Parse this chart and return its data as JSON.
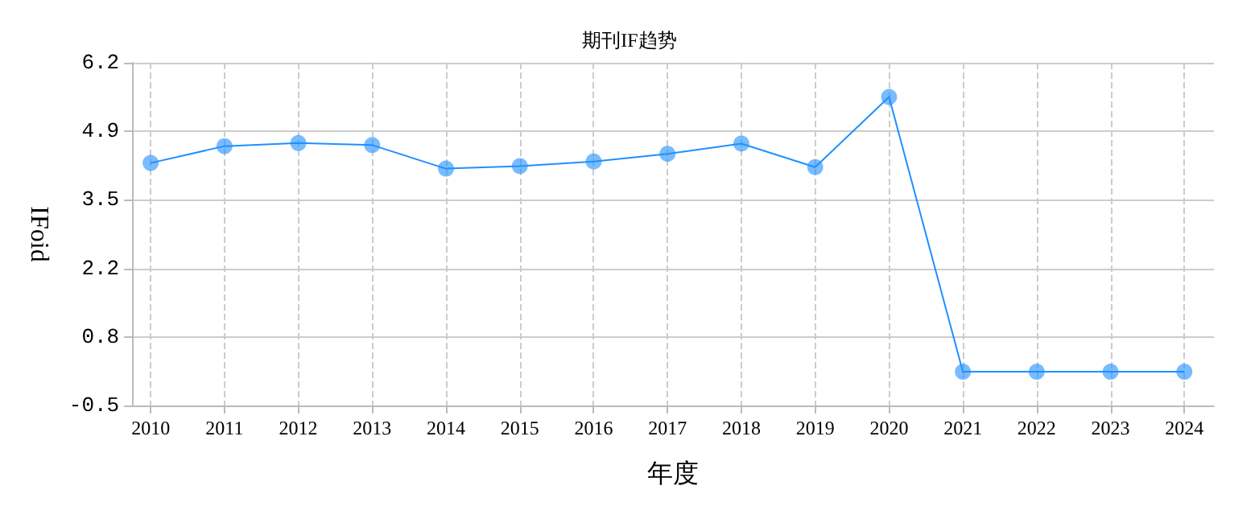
{
  "chart_data": {
    "type": "line",
    "title": "期刊IF趋势",
    "xlabel": "年度",
    "ylabel": "IFoid",
    "x": [
      2010,
      2011,
      2012,
      2013,
      2014,
      2015,
      2016,
      2017,
      2018,
      2019,
      2020,
      2021,
      2022,
      2023,
      2024
    ],
    "series": [
      {
        "color": "#1e90ff",
        "values": [
          4.24,
          4.57,
          4.63,
          4.59,
          4.13,
          4.18,
          4.27,
          4.42,
          4.62,
          4.16,
          5.53,
          0.16,
          0.16,
          0.16,
          0.16
        ]
      }
    ],
    "xlim": [
      2009.75,
      2024.4
    ],
    "xticks": [
      2010,
      2011,
      2012,
      2013,
      2014,
      2015,
      2016,
      2017,
      2018,
      2019,
      2020,
      2021,
      2022,
      2023,
      2024
    ],
    "ylim": [
      -0.5,
      6.2
    ],
    "yticks": [
      -0.5,
      {
        "value": 0.84,
        "label": "0.8"
      },
      {
        "value": 2.18,
        "label": "2.2"
      },
      {
        "value": 3.52,
        "label": "3.5"
      },
      {
        "value": 4.86,
        "label": "4.9"
      },
      6.2
    ],
    "grid": true,
    "marker": "circle",
    "line_style": "solid"
  }
}
